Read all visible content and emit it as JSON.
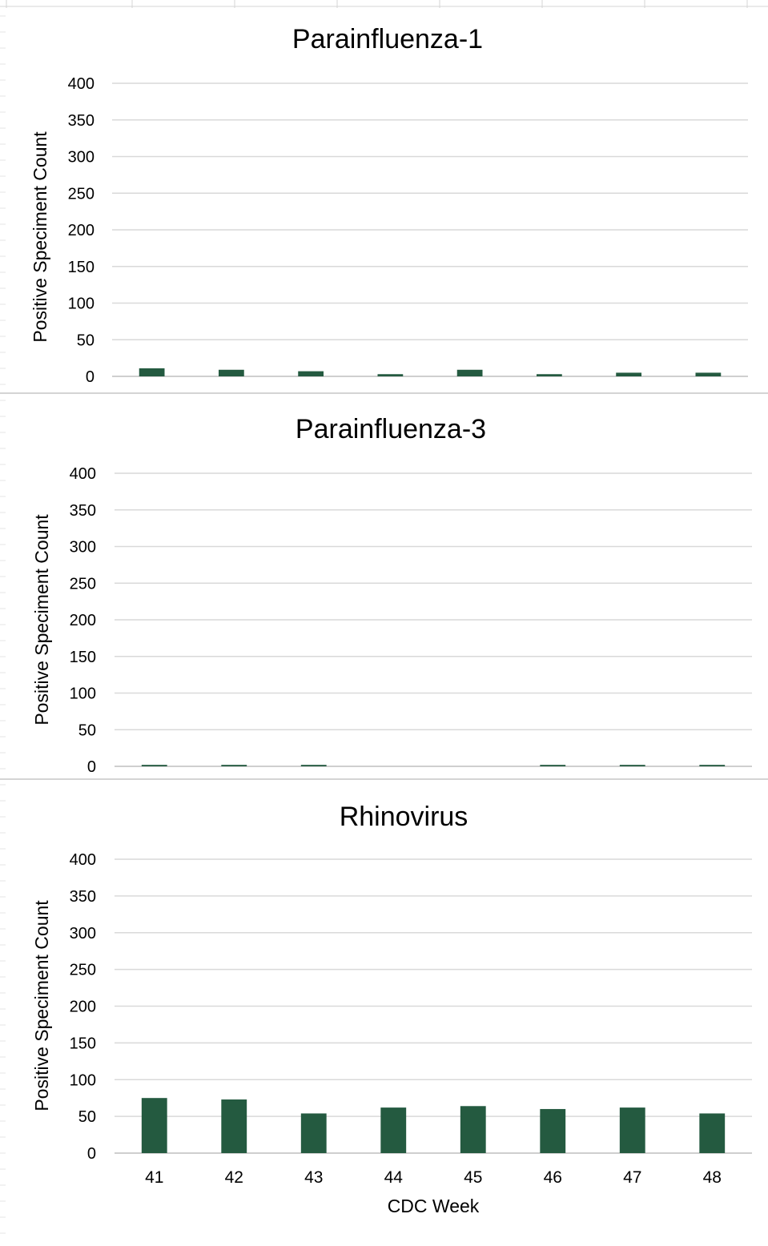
{
  "colors": {
    "bar": "#245A40",
    "gridline": "#D9D9D9",
    "sheet_grid": "#D4D4D4",
    "text": "#000000"
  },
  "chart_data": [
    {
      "type": "bar",
      "title": "Parainfluenza-1",
      "ylabel": "Positive Speciment Count",
      "xlabel": "",
      "ylim": [
        0,
        400
      ],
      "yticks": [
        0,
        50,
        100,
        150,
        200,
        250,
        300,
        350,
        400
      ],
      "categories": [
        "41",
        "42",
        "43",
        "44",
        "45",
        "46",
        "47",
        "48"
      ],
      "show_category_labels": false,
      "values": [
        11,
        9,
        7,
        3,
        9,
        3,
        5,
        5
      ],
      "grid": true,
      "legend": "none"
    },
    {
      "type": "bar",
      "title": "Parainfluenza-3",
      "ylabel": "Positive Speciment Count",
      "xlabel": "",
      "ylim": [
        0,
        400
      ],
      "yticks": [
        0,
        50,
        100,
        150,
        200,
        250,
        300,
        350,
        400
      ],
      "categories": [
        "41",
        "42",
        "43",
        "44",
        "45",
        "46",
        "47",
        "48"
      ],
      "show_category_labels": false,
      "values": [
        2,
        2,
        2,
        0,
        0,
        2,
        2,
        2
      ],
      "grid": true,
      "legend": "none"
    },
    {
      "type": "bar",
      "title": "Rhinovirus",
      "ylabel": "Positive Speciment Count",
      "xlabel": "CDC Week",
      "ylim": [
        0,
        400
      ],
      "yticks": [
        0,
        50,
        100,
        150,
        200,
        250,
        300,
        350,
        400
      ],
      "categories": [
        "41",
        "42",
        "43",
        "44",
        "45",
        "46",
        "47",
        "48"
      ],
      "show_category_labels": true,
      "values": [
        75,
        73,
        54,
        62,
        64,
        60,
        62,
        54
      ],
      "grid": true,
      "legend": "none"
    }
  ]
}
